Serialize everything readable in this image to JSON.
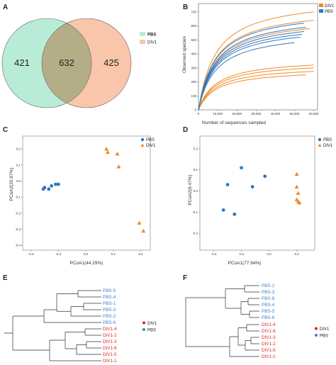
{
  "colors": {
    "pbs": "#2f78c2",
    "div1": "#f08a24",
    "pbs_label": "#3f7fcc",
    "div1_label": "#e02020",
    "venn_pbs": "#b9ecd6",
    "venn_div1": "#f9c5ab",
    "venn_overlap": "#b4ae86"
  },
  "panels": {
    "A": "A",
    "B": "B",
    "C": "C",
    "D": "D",
    "E": "E",
    "F": "F"
  },
  "chart_data": [
    {
      "panel": "A",
      "type": "venn",
      "sets": [
        {
          "name": "PBS",
          "only": 421
        },
        {
          "name": "DIV1",
          "only": 425
        }
      ],
      "intersection": 632,
      "legend": [
        "PBS",
        "DIV1"
      ]
    },
    {
      "panel": "B",
      "type": "line",
      "ylabel": "Observed species",
      "xlabel": "Number of sequences sampled",
      "xlim": [
        0,
        62000
      ],
      "ylim": [
        0,
        760
      ],
      "x_ticks": [
        "0",
        "10,000",
        "20,000",
        "30,000",
        "40,000",
        "50,000",
        "60,000"
      ],
      "y_ticks": [
        "0",
        "100",
        "200",
        "300",
        "400",
        "500",
        "600",
        "700"
      ],
      "legend": [
        "DIV1",
        "PBS"
      ],
      "series": [
        {
          "name": "DIV1",
          "curves": [
            {
              "xmax": 60000,
              "ymax": 700
            },
            {
              "xmax": 60000,
              "ymax": 640
            },
            {
              "xmax": 58000,
              "ymax": 580
            },
            {
              "xmax": 60000,
              "ymax": 320
            },
            {
              "xmax": 60000,
              "ymax": 300
            },
            {
              "xmax": 60000,
              "ymax": 275
            },
            {
              "xmax": 56000,
              "ymax": 250
            }
          ]
        },
        {
          "name": "PBS",
          "curves": [
            {
              "xmax": 55000,
              "ymax": 620
            },
            {
              "xmax": 56000,
              "ymax": 590
            },
            {
              "xmax": 55000,
              "ymax": 560
            },
            {
              "xmax": 54000,
              "ymax": 540
            },
            {
              "xmax": 53000,
              "ymax": 520
            },
            {
              "xmax": 50000,
              "ymax": 480
            }
          ]
        }
      ]
    },
    {
      "panel": "C",
      "type": "scatter",
      "xlabel": "PCoA1(44.29%)",
      "ylabel": "PCoA2(20.97%)",
      "xlim": [
        -0.46,
        0.47
      ],
      "ylim": [
        -0.43,
        0.28
      ],
      "x_ticks": [
        -0.4,
        -0.2,
        0,
        0.2,
        0.4
      ],
      "y_ticks": [
        -0.4,
        -0.3,
        -0.2,
        -0.1,
        0,
        0.1,
        0.2
      ],
      "legend": [
        "PBS",
        "DIV1"
      ],
      "series": [
        {
          "name": "PBS",
          "marker": "circle",
          "points": [
            [
              -0.31,
              -0.05
            ],
            [
              -0.3,
              -0.04
            ],
            [
              -0.27,
              -0.05
            ],
            [
              -0.25,
              -0.03
            ],
            [
              -0.22,
              -0.02
            ],
            [
              -0.2,
              -0.02
            ]
          ]
        },
        {
          "name": "DIV1",
          "marker": "triangle",
          "points": [
            [
              0.15,
              0.2
            ],
            [
              0.16,
              0.18
            ],
            [
              0.23,
              0.17
            ],
            [
              0.24,
              0.09
            ],
            [
              0.39,
              -0.26
            ],
            [
              0.42,
              -0.31
            ]
          ]
        }
      ]
    },
    {
      "panel": "D",
      "type": "scatter",
      "xlabel": "PCoA1(77.94%)",
      "ylabel": "PCoA2(8.47%)",
      "xlim": [
        -0.5,
        0.33
      ],
      "ylim": [
        -0.28,
        0.26
      ],
      "x_ticks": [
        -0.4,
        -0.2,
        0,
        0.2
      ],
      "y_ticks": [
        -0.2,
        -0.1,
        0,
        0.1,
        0.2
      ],
      "legend": [
        "PBS",
        "DIV1"
      ],
      "series": [
        {
          "name": "PBS",
          "marker": "circle",
          "points": [
            [
              -0.2,
              0.11
            ],
            [
              -0.03,
              0.07
            ],
            [
              -0.3,
              0.03
            ],
            [
              -0.12,
              0.02
            ],
            [
              -0.33,
              -0.09
            ],
            [
              -0.25,
              -0.11
            ]
          ]
        },
        {
          "name": "DIV1",
          "marker": "triangle",
          "points": [
            [
              0.2,
              0.08
            ],
            [
              0.2,
              0.02
            ],
            [
              0.21,
              -0.01
            ],
            [
              0.2,
              -0.04
            ],
            [
              0.21,
              -0.05
            ],
            [
              0.22,
              -0.055
            ]
          ]
        }
      ]
    },
    {
      "panel": "E",
      "type": "dendrogram",
      "legend": [
        "DIV1",
        "PBS"
      ],
      "leaves": [
        {
          "label": "PBS-5",
          "group": "PBS"
        },
        {
          "label": "PBS-4",
          "group": "PBS"
        },
        {
          "label": "PBS-1",
          "group": "PBS"
        },
        {
          "label": "PBS-3",
          "group": "PBS"
        },
        {
          "label": "PBS-2",
          "group": "PBS"
        },
        {
          "label": "PBS-6",
          "group": "PBS"
        },
        {
          "label": "DIV1-4",
          "group": "DIV1"
        },
        {
          "label": "DIV1-2",
          "group": "DIV1"
        },
        {
          "label": "DIV1-3",
          "group": "DIV1"
        },
        {
          "label": "DIV1-6",
          "group": "DIV1"
        },
        {
          "label": "DIV1-5",
          "group": "DIV1"
        },
        {
          "label": "DIV1-1",
          "group": "DIV1"
        }
      ]
    },
    {
      "panel": "F",
      "type": "dendrogram",
      "legend": [
        "DIV1",
        "PBS"
      ],
      "leaves": [
        {
          "label": "PBS-2",
          "group": "PBS"
        },
        {
          "label": "PBS-3",
          "group": "PBS"
        },
        {
          "label": "PBS-6",
          "group": "PBS"
        },
        {
          "label": "PBS-4",
          "group": "PBS"
        },
        {
          "label": "PBS-5",
          "group": "PBS"
        },
        {
          "label": "PBS-6",
          "group": "PBS"
        },
        {
          "label": "DIV1-4",
          "group": "DIV1"
        },
        {
          "label": "DIV1-6",
          "group": "DIV1"
        },
        {
          "label": "DIV1-3",
          "group": "DIV1"
        },
        {
          "label": "DIV1-2",
          "group": "DIV1"
        },
        {
          "label": "DIV1-5",
          "group": "DIV1"
        },
        {
          "label": "DIV1-1",
          "group": "DIV1"
        }
      ]
    }
  ]
}
